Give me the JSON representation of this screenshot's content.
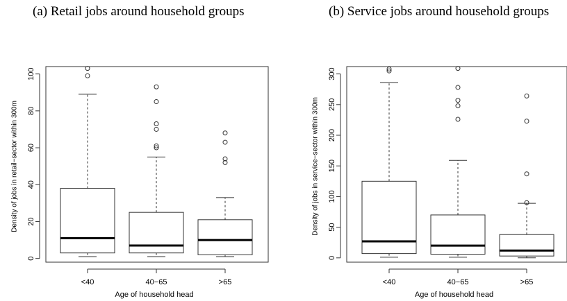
{
  "chart_data": [
    {
      "type": "box",
      "title": "(a) Retail jobs around household groups",
      "xlabel": "Age of household head",
      "ylabel": "Density of jobs in retail−sector within 300m",
      "categories": [
        "<40",
        "40−65",
        ">65"
      ],
      "y_ticks": [
        0,
        20,
        40,
        60,
        80,
        100
      ],
      "ylim": [
        -2,
        104
      ],
      "boxes": [
        {
          "whisker_low": 1,
          "q1": 3,
          "median": 11,
          "q3": 38,
          "whisker_high": 89,
          "outliers": [
            99,
            103
          ]
        },
        {
          "whisker_low": 1,
          "q1": 3,
          "median": 7,
          "q3": 25,
          "whisker_high": 55,
          "outliers": [
            60,
            61,
            70,
            73,
            85,
            93
          ]
        },
        {
          "whisker_low": 1,
          "q1": 2,
          "median": 10,
          "q3": 21,
          "whisker_high": 33,
          "outliers": [
            52,
            54,
            63,
            68
          ]
        }
      ],
      "grid": false
    },
    {
      "type": "box",
      "title": "(b) Service jobs around household groups",
      "xlabel": "Age of household head",
      "ylabel": "Density of jobs in service−sector within 300m",
      "categories": [
        "<40",
        "40−65",
        ">65"
      ],
      "y_ticks": [
        0,
        50,
        100,
        150,
        200,
        250,
        300
      ],
      "ylim": [
        -7,
        312
      ],
      "boxes": [
        {
          "whisker_low": 1,
          "q1": 7,
          "median": 27,
          "q3": 125,
          "whisker_high": 286,
          "outliers": [
            305,
            308
          ]
        },
        {
          "whisker_low": 1,
          "q1": 6,
          "median": 20,
          "q3": 70,
          "whisker_high": 159,
          "outliers": [
            226,
            248,
            257,
            278,
            309
          ]
        },
        {
          "whisker_low": 0,
          "q1": 3,
          "median": 12,
          "q3": 38,
          "whisker_high": 89,
          "outliers": [
            90,
            137,
            223,
            264
          ]
        }
      ],
      "grid": false
    }
  ]
}
